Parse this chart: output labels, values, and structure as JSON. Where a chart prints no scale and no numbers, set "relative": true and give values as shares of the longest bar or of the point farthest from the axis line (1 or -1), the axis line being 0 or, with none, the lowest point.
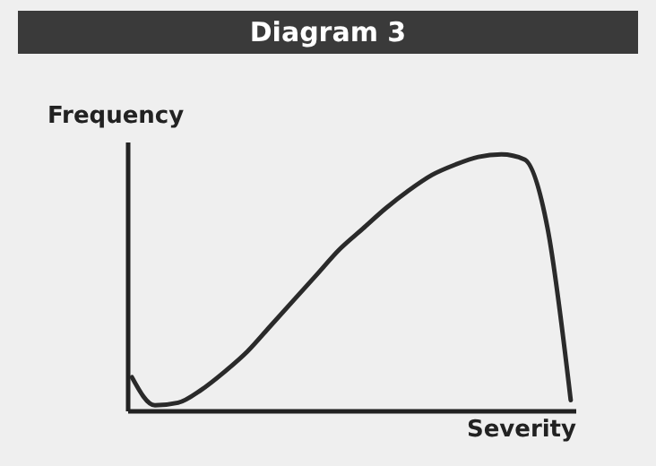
{
  "chart_data": {
    "type": "line",
    "title": "Diagram 3",
    "xlabel": "Severity",
    "ylabel": "Frequency",
    "relative": true,
    "categories": [
      null,
      null,
      null,
      null,
      null,
      null,
      null,
      null,
      null,
      null,
      null,
      null,
      null,
      null,
      null,
      null,
      null,
      null,
      null,
      null
    ],
    "series": [
      {
        "color": "#2a2a2a",
        "values": [
          0.13,
          0.02,
          0.03,
          0.08,
          0.15,
          0.23,
          0.33,
          0.43,
          0.53,
          0.63,
          0.71,
          0.79,
          0.86,
          0.92,
          0.96,
          0.99,
          1,
          0.98,
          0.71,
          0.04
        ]
      }
    ]
  }
}
